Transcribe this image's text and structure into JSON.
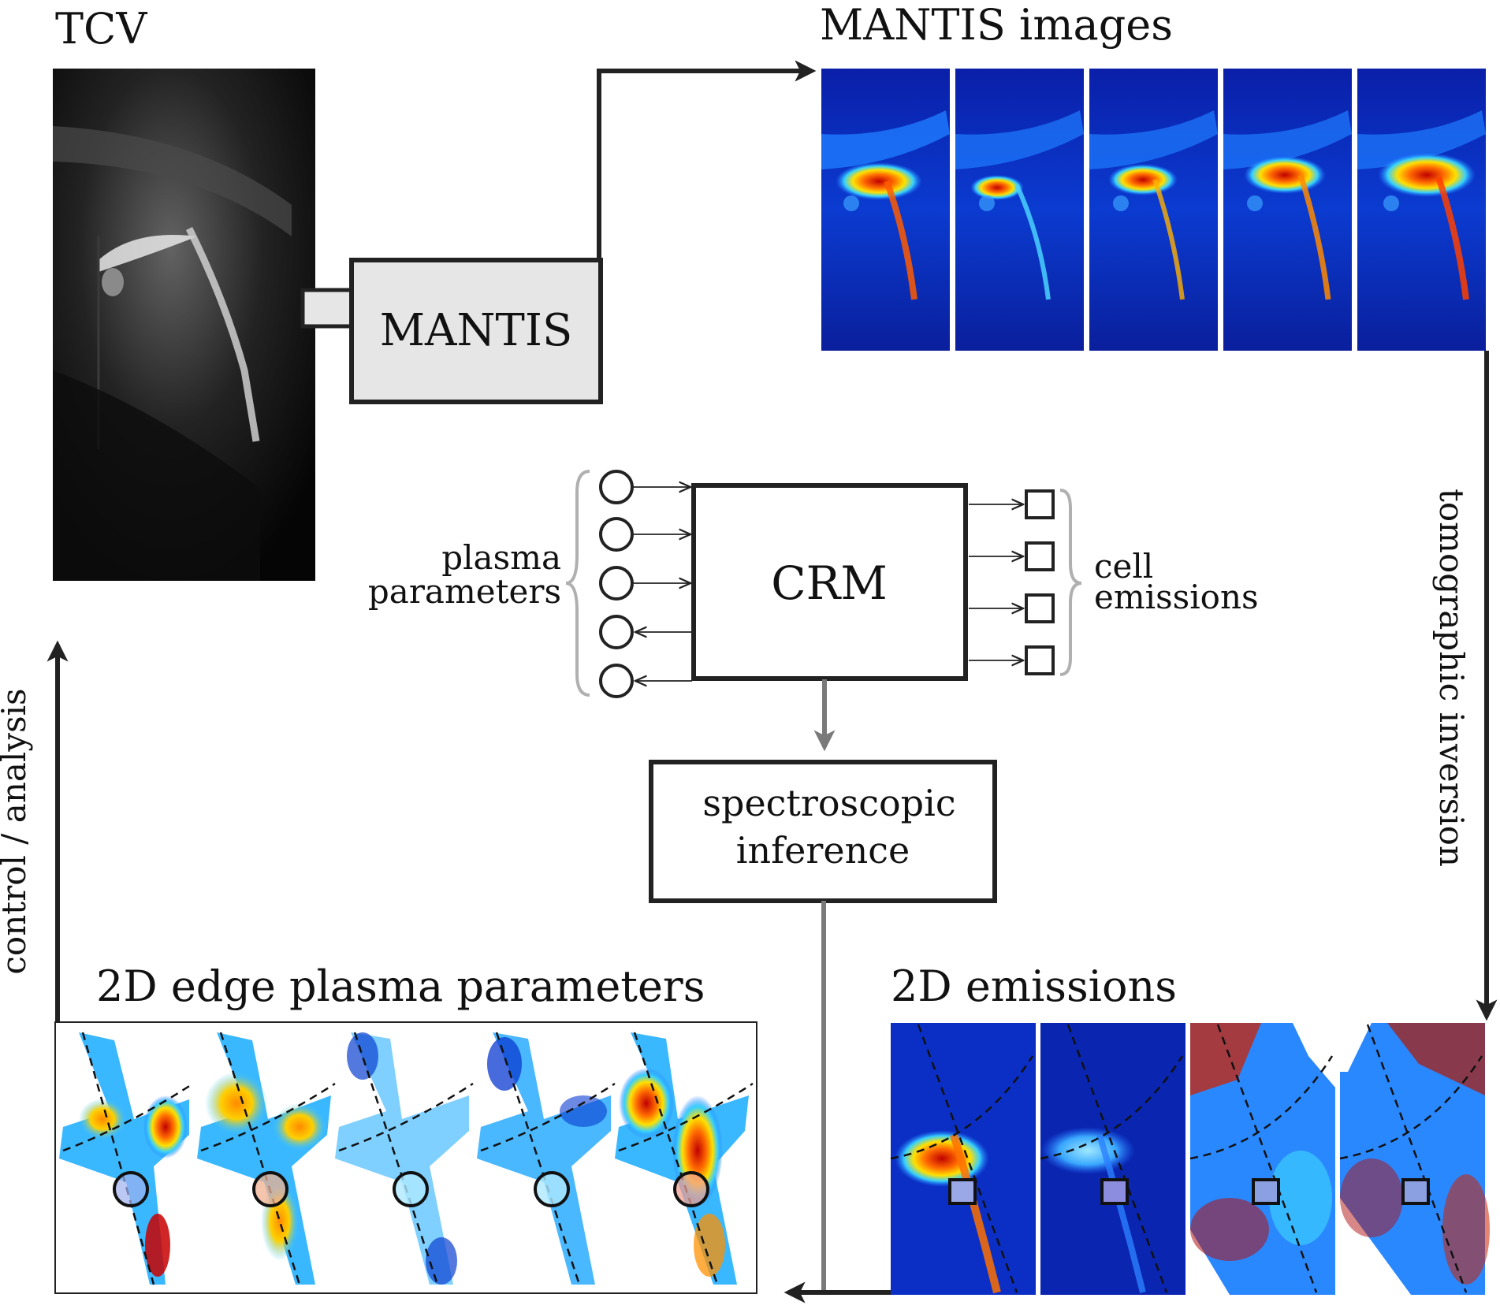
{
  "labels": {
    "tcv": "TCV",
    "mantis_images": "MANTIS images",
    "mantis_box": "MANTIS",
    "crm_box": "CRM",
    "plasma_parameters_line1": "plasma",
    "plasma_parameters_line2": "parameters",
    "cell_emissions_line1": "cell",
    "cell_emissions_line2": "emissions",
    "spectroscopic_line1": "spectroscopic",
    "spectroscopic_line2": "inference",
    "tomographic_inversion": "tomographic inversion",
    "control_analysis": "control / analysis",
    "edge_plasma_parameters": "2D edge plasma parameters",
    "emissions_2d": "2D emissions"
  },
  "colors": {
    "line": "#222222",
    "grey_arrow": "#7a7a7a",
    "brace": "#b0b0b0",
    "mantis_box_fill": "#e6e6e6",
    "jet_blue": "#0a2db4",
    "jet_red": "#cc1100"
  }
}
